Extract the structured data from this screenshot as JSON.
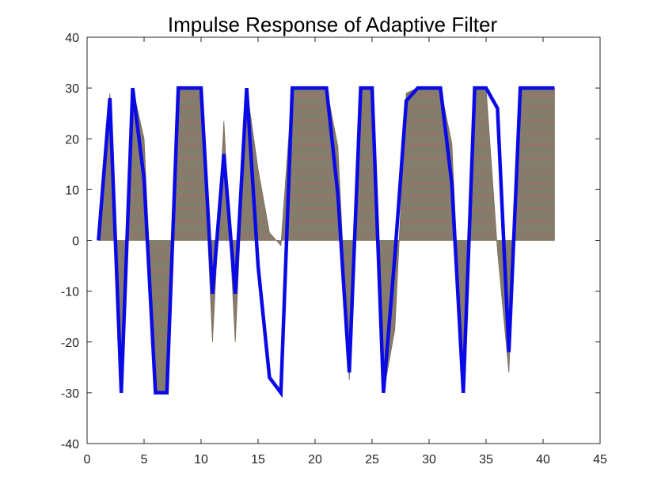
{
  "chart_data": {
    "type": "line",
    "title": "Impulse Response of Adaptive Filter",
    "xlabel": "",
    "ylabel": "",
    "xlim": [
      0,
      45
    ],
    "ylim": [
      -40,
      40
    ],
    "xticks": [
      0,
      5,
      10,
      15,
      20,
      25,
      30,
      35,
      40,
      45
    ],
    "yticks": [
      -40,
      -30,
      -20,
      -10,
      0,
      10,
      20,
      30,
      40
    ],
    "grid": false,
    "legend": "none",
    "series": [
      {
        "color": "#0a0ae6",
        "x": [
          1,
          2,
          3,
          4,
          5,
          6,
          7,
          8,
          9,
          10,
          11,
          12,
          13,
          14,
          15,
          16,
          17,
          18,
          19,
          20,
          21,
          22,
          23,
          24,
          25,
          26,
          27,
          28,
          29,
          30,
          31,
          32,
          33,
          34,
          35,
          36,
          37,
          38,
          39,
          40,
          41
        ],
        "values": [
          0,
          28,
          -30,
          30,
          12,
          -30,
          -30,
          30,
          30,
          30,
          -10.5,
          17,
          -10.5,
          30,
          -5,
          -27,
          -30,
          30,
          30,
          30,
          30,
          9,
          -26,
          30,
          30,
          -30,
          -3,
          27.5,
          30,
          30,
          30,
          11,
          -30,
          30,
          30,
          26,
          -22,
          30,
          30,
          30,
          30
        ]
      },
      {
        "color": "#7a6a5a",
        "fill": true,
        "x": [
          1,
          2,
          3,
          4,
          5,
          6,
          7,
          8,
          9,
          10,
          11,
          12,
          13,
          14,
          15,
          16,
          17,
          18,
          19,
          20,
          21,
          22,
          23,
          24,
          25,
          26,
          27,
          28,
          29,
          30,
          31,
          32,
          33,
          34,
          35,
          36,
          37,
          38,
          39,
          40,
          41
        ],
        "values": [
          0,
          29,
          -30,
          30,
          20,
          -30,
          -30,
          30,
          30,
          30,
          -20,
          23.5,
          -20,
          30,
          14,
          1.5,
          -1,
          30,
          30,
          30,
          30,
          18.5,
          -27.5,
          30,
          30,
          -30,
          -17.5,
          29,
          30,
          30,
          30,
          19,
          -30,
          30,
          30,
          -2,
          -26,
          30,
          30,
          30,
          30
        ]
      }
    ]
  }
}
